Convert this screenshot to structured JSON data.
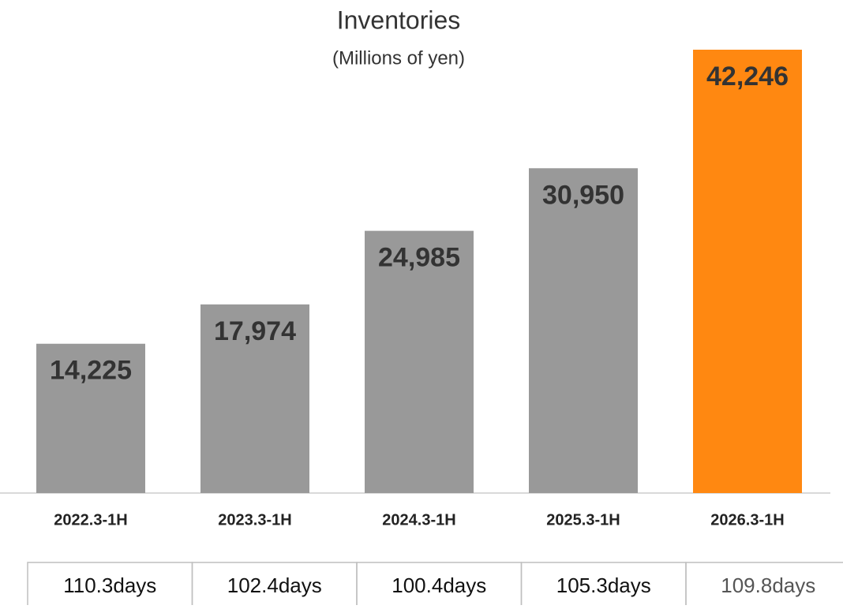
{
  "chart_data": {
    "type": "bar",
    "title": "Inventories",
    "subtitle": "(Millions of yen)",
    "categories": [
      "2022.3-1H",
      "2023.3-1H",
      "2024.3-1H",
      "2025.3-1H",
      "2026.3-1H"
    ],
    "values": [
      14225,
      17974,
      24985,
      30950,
      42246
    ],
    "value_labels": [
      "14,225",
      "17,974",
      "24,985",
      "30,950",
      "42,246"
    ],
    "colors": [
      "#999999",
      "#999999",
      "#999999",
      "#999999",
      "#ff8811"
    ]
  },
  "table": {
    "rows": [
      [
        "110.3days",
        "102.4days",
        "100.4days",
        "105.3days",
        "109.8days"
      ]
    ]
  }
}
